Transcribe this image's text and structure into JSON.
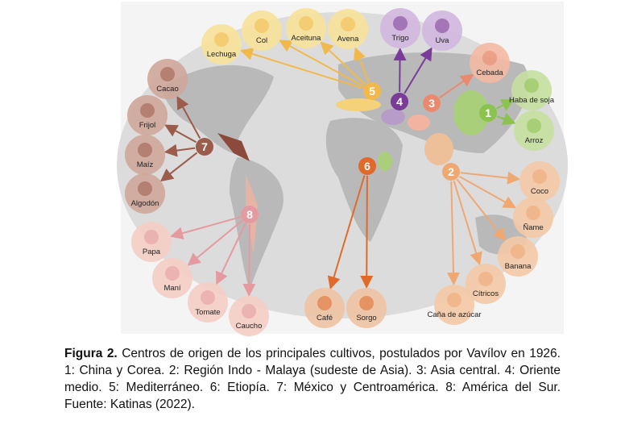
{
  "centers": [
    {
      "label": "1",
      "crops": [
        "Haba de soja",
        "Arroz"
      ]
    },
    {
      "label": "2",
      "crops": [
        "Coco",
        "Ñame",
        "Banana",
        "Cítricos",
        "Caña de azúcar"
      ]
    },
    {
      "label": "3",
      "crops": [
        "Cebada"
      ]
    },
    {
      "label": "4",
      "crops": [
        "Trigo",
        "Uva"
      ]
    },
    {
      "label": "5",
      "crops": [
        "Lechuga",
        "Col",
        "Aceituna",
        "Avena"
      ]
    },
    {
      "label": "6",
      "crops": [
        "Café",
        "Sorgo"
      ]
    },
    {
      "label": "7",
      "crops": [
        "Cacao",
        "Frijol",
        "Maíz",
        "Algodón"
      ]
    },
    {
      "label": "8",
      "crops": [
        "Papa",
        "Maní",
        "Tomate",
        "Caucho"
      ]
    }
  ],
  "caption": {
    "lead": "Figura 2.",
    "text": "Centros de origen de los principales cultivos, postulados por Vavílov en 1926. 1: China y Corea. 2: Región Indo - Malaya (sudeste de Asia). 3: Asia central. 4: Oriente medio. 5: Mediterráneo. 6: Etiopía. 7: México y Centroamérica. 8: América del Sur. Fuente: Katinas (2022)."
  }
}
